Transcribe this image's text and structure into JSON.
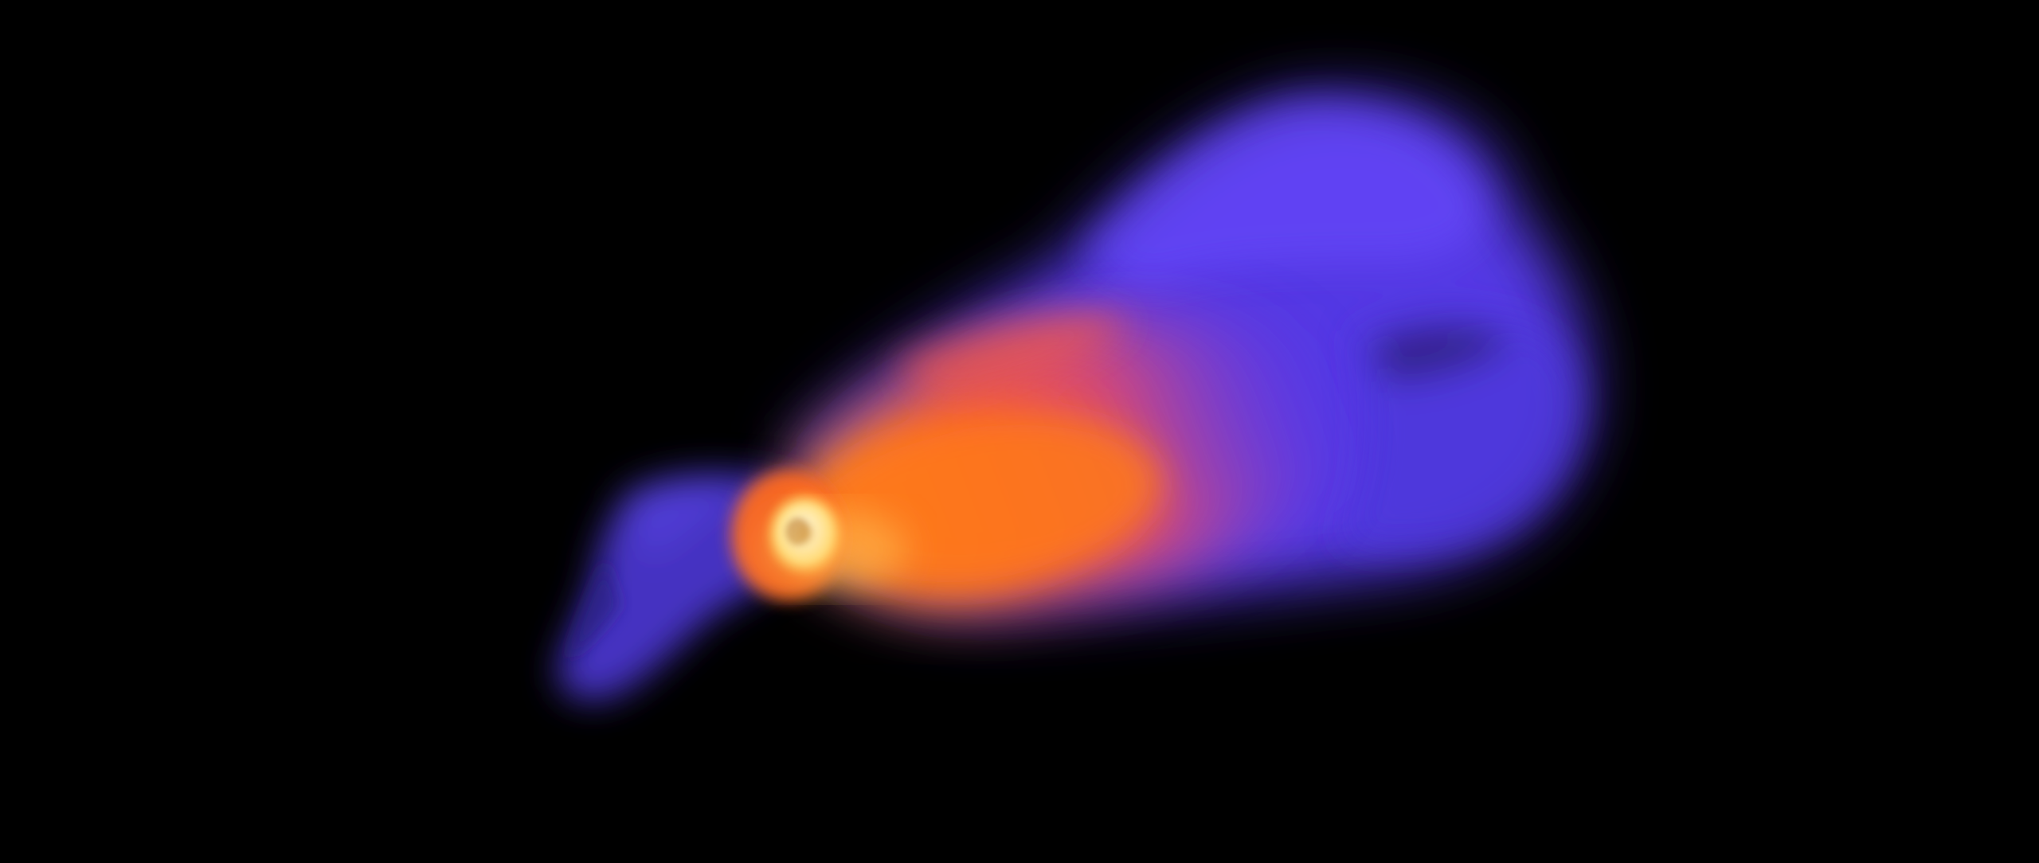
{
  "scene": {
    "background": "#000000",
    "palette": {
      "outer_plume": "#5a3df0",
      "outer_plume_deep": "#3a2ab8",
      "mid_plume": "#ff5a2a",
      "warm_plume": "#ff7a1a",
      "hot_core": "#fff2a8",
      "core_white": "#fffbe6",
      "back_jet": "#4c38d6"
    }
  }
}
